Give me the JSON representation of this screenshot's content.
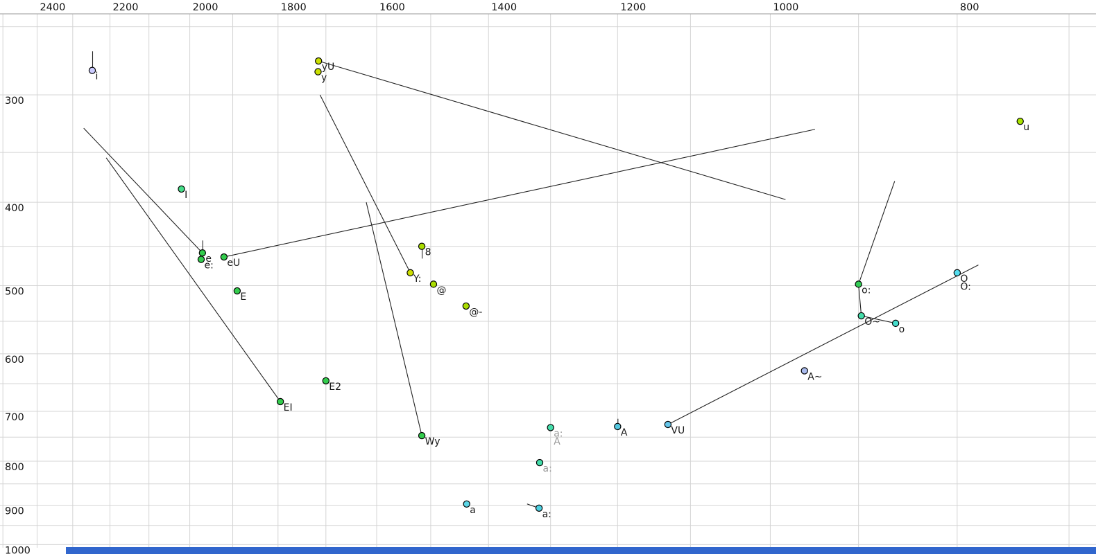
{
  "window": {
    "background": "#ffffff",
    "bottom_bar_color": "#3166cd",
    "grid_color": "#d4d4d4",
    "border_color": "#9a9a9a",
    "line_color": "#222222",
    "axis_text_color": "#111111",
    "point_label_color": "#1a1a1a",
    "muted_label_color": "#9a9a9a"
  },
  "chart_data": {
    "type": "scatter",
    "title": "",
    "x_axis": {
      "unit": "Hz",
      "scale": "log",
      "direction": "reversed",
      "min_f": 700,
      "max_f": 2500,
      "grid_step": 100,
      "tick_labels": [
        2400,
        2200,
        2000,
        1800,
        1600,
        1400,
        1200,
        1000,
        800
      ]
    },
    "y_axis": {
      "unit": "Hz",
      "scale": "log",
      "direction": "reversed",
      "min_f": 250,
      "max_f": 1000,
      "grid_step": 50,
      "tick_labels": [
        300,
        400,
        500,
        600,
        700,
        800,
        900,
        1000
      ]
    },
    "points": [
      {
        "label": "i",
        "f2": 2247,
        "f1": 281,
        "color": "#ccccff",
        "tail_f1": 267
      },
      {
        "label": "yU",
        "f2": 1715,
        "f1": 274,
        "color": "#cbe000"
      },
      {
        "label": "y",
        "f2": 1716,
        "f1": 282,
        "color": "#cbe000"
      },
      {
        "label": "I",
        "f2": 2020,
        "f1": 386,
        "color": "#44dd88"
      },
      {
        "label": "e",
        "f2": 1970,
        "f1": 458,
        "color": "#33cc4d",
        "tail_f1": 443
      },
      {
        "label": "e:",
        "f2": 1973,
        "f1": 466,
        "color": "#33cc4d"
      },
      {
        "label": "eU",
        "f2": 1920,
        "f1": 463,
        "color": "#33cc4d"
      },
      {
        "label": "E",
        "f2": 1890,
        "f1": 507,
        "color": "#33cc4d"
      },
      {
        "label": "E2",
        "f2": 1700,
        "f1": 645,
        "color": "#33cc4d"
      },
      {
        "label": "EI",
        "f2": 1795,
        "f1": 682,
        "color": "#33cc4d"
      },
      {
        "label": "8",
        "f2": 1516,
        "f1": 450,
        "color": "#aadd00",
        "tail_f1": 465
      },
      {
        "label": "Y:",
        "f2": 1537,
        "f1": 483,
        "color": "#ccdd00"
      },
      {
        "label": "@",
        "f2": 1495,
        "f1": 498,
        "color": "#aadd00"
      },
      {
        "label": "@-",
        "f2": 1438,
        "f1": 528,
        "color": "#aadd00"
      },
      {
        "label": "Wy",
        "f2": 1516,
        "f1": 747,
        "color": "#33cc4d"
      },
      {
        "labels": [
          "a:",
          "A"
        ],
        "f2": 1300,
        "f1": 731,
        "color": "#44ddaa",
        "muted": true
      },
      {
        "label": "A",
        "f2": 1200,
        "f1": 729,
        "color": "#54c8e0",
        "tail_f1": 714
      },
      {
        "label": "a:",
        "f2": 1317,
        "f1": 803,
        "color": "#44ddaa",
        "muted": true
      },
      {
        "label": "a",
        "f2": 1437,
        "f1": 897,
        "color": "#5cd6e6"
      },
      {
        "label": "a:",
        "f2": 1318,
        "f1": 907,
        "color": "#4dcfe0"
      },
      {
        "label": "VU",
        "f2": 1130,
        "f1": 725,
        "color": "#66c6ea"
      },
      {
        "label": "A~",
        "f2": 960,
        "f1": 628,
        "color": "#aabbee"
      },
      {
        "label": "u",
        "f2": 742,
        "f1": 322,
        "color": "#aae400"
      },
      {
        "label": "o:",
        "f2": 900,
        "f1": 498,
        "color": "#33cc55"
      },
      {
        "label": "O~",
        "f2": 897,
        "f1": 542,
        "color": "#44ddaa"
      },
      {
        "label": "o",
        "f2": 861,
        "f1": 553,
        "color": "#44ddcc"
      },
      {
        "labels": [
          "O",
          "O:"
        ],
        "f2": 800,
        "f1": 483,
        "color": "#55ddee"
      }
    ],
    "lines": [
      {
        "from": [
          1715,
          274
        ],
        "to": [
          982,
          397
        ]
      },
      {
        "from": [
          1920,
          463
        ],
        "to": [
          948,
          329
        ]
      },
      {
        "from": [
          2270,
          328
        ],
        "to": [
          1970,
          458
        ]
      },
      {
        "from": [
          2210,
          355
        ],
        "to": [
          1795,
          682
        ]
      },
      {
        "from": [
          1712,
          300
        ],
        "to": [
          1537,
          483
        ]
      },
      {
        "from": [
          1620,
          400
        ],
        "to": [
          1516,
          747
        ]
      },
      {
        "from": [
          1130,
          725
        ],
        "to": [
          780,
          473
        ]
      },
      {
        "from": [
          862,
          378
        ],
        "to": [
          900,
          498
        ]
      },
      {
        "from": [
          900,
          498
        ],
        "to": [
          897,
          542
        ]
      },
      {
        "from": [
          897,
          542
        ],
        "to": [
          861,
          553
        ]
      },
      {
        "from": [
          1337,
          897
        ],
        "to": [
          1318,
          907
        ]
      }
    ]
  }
}
